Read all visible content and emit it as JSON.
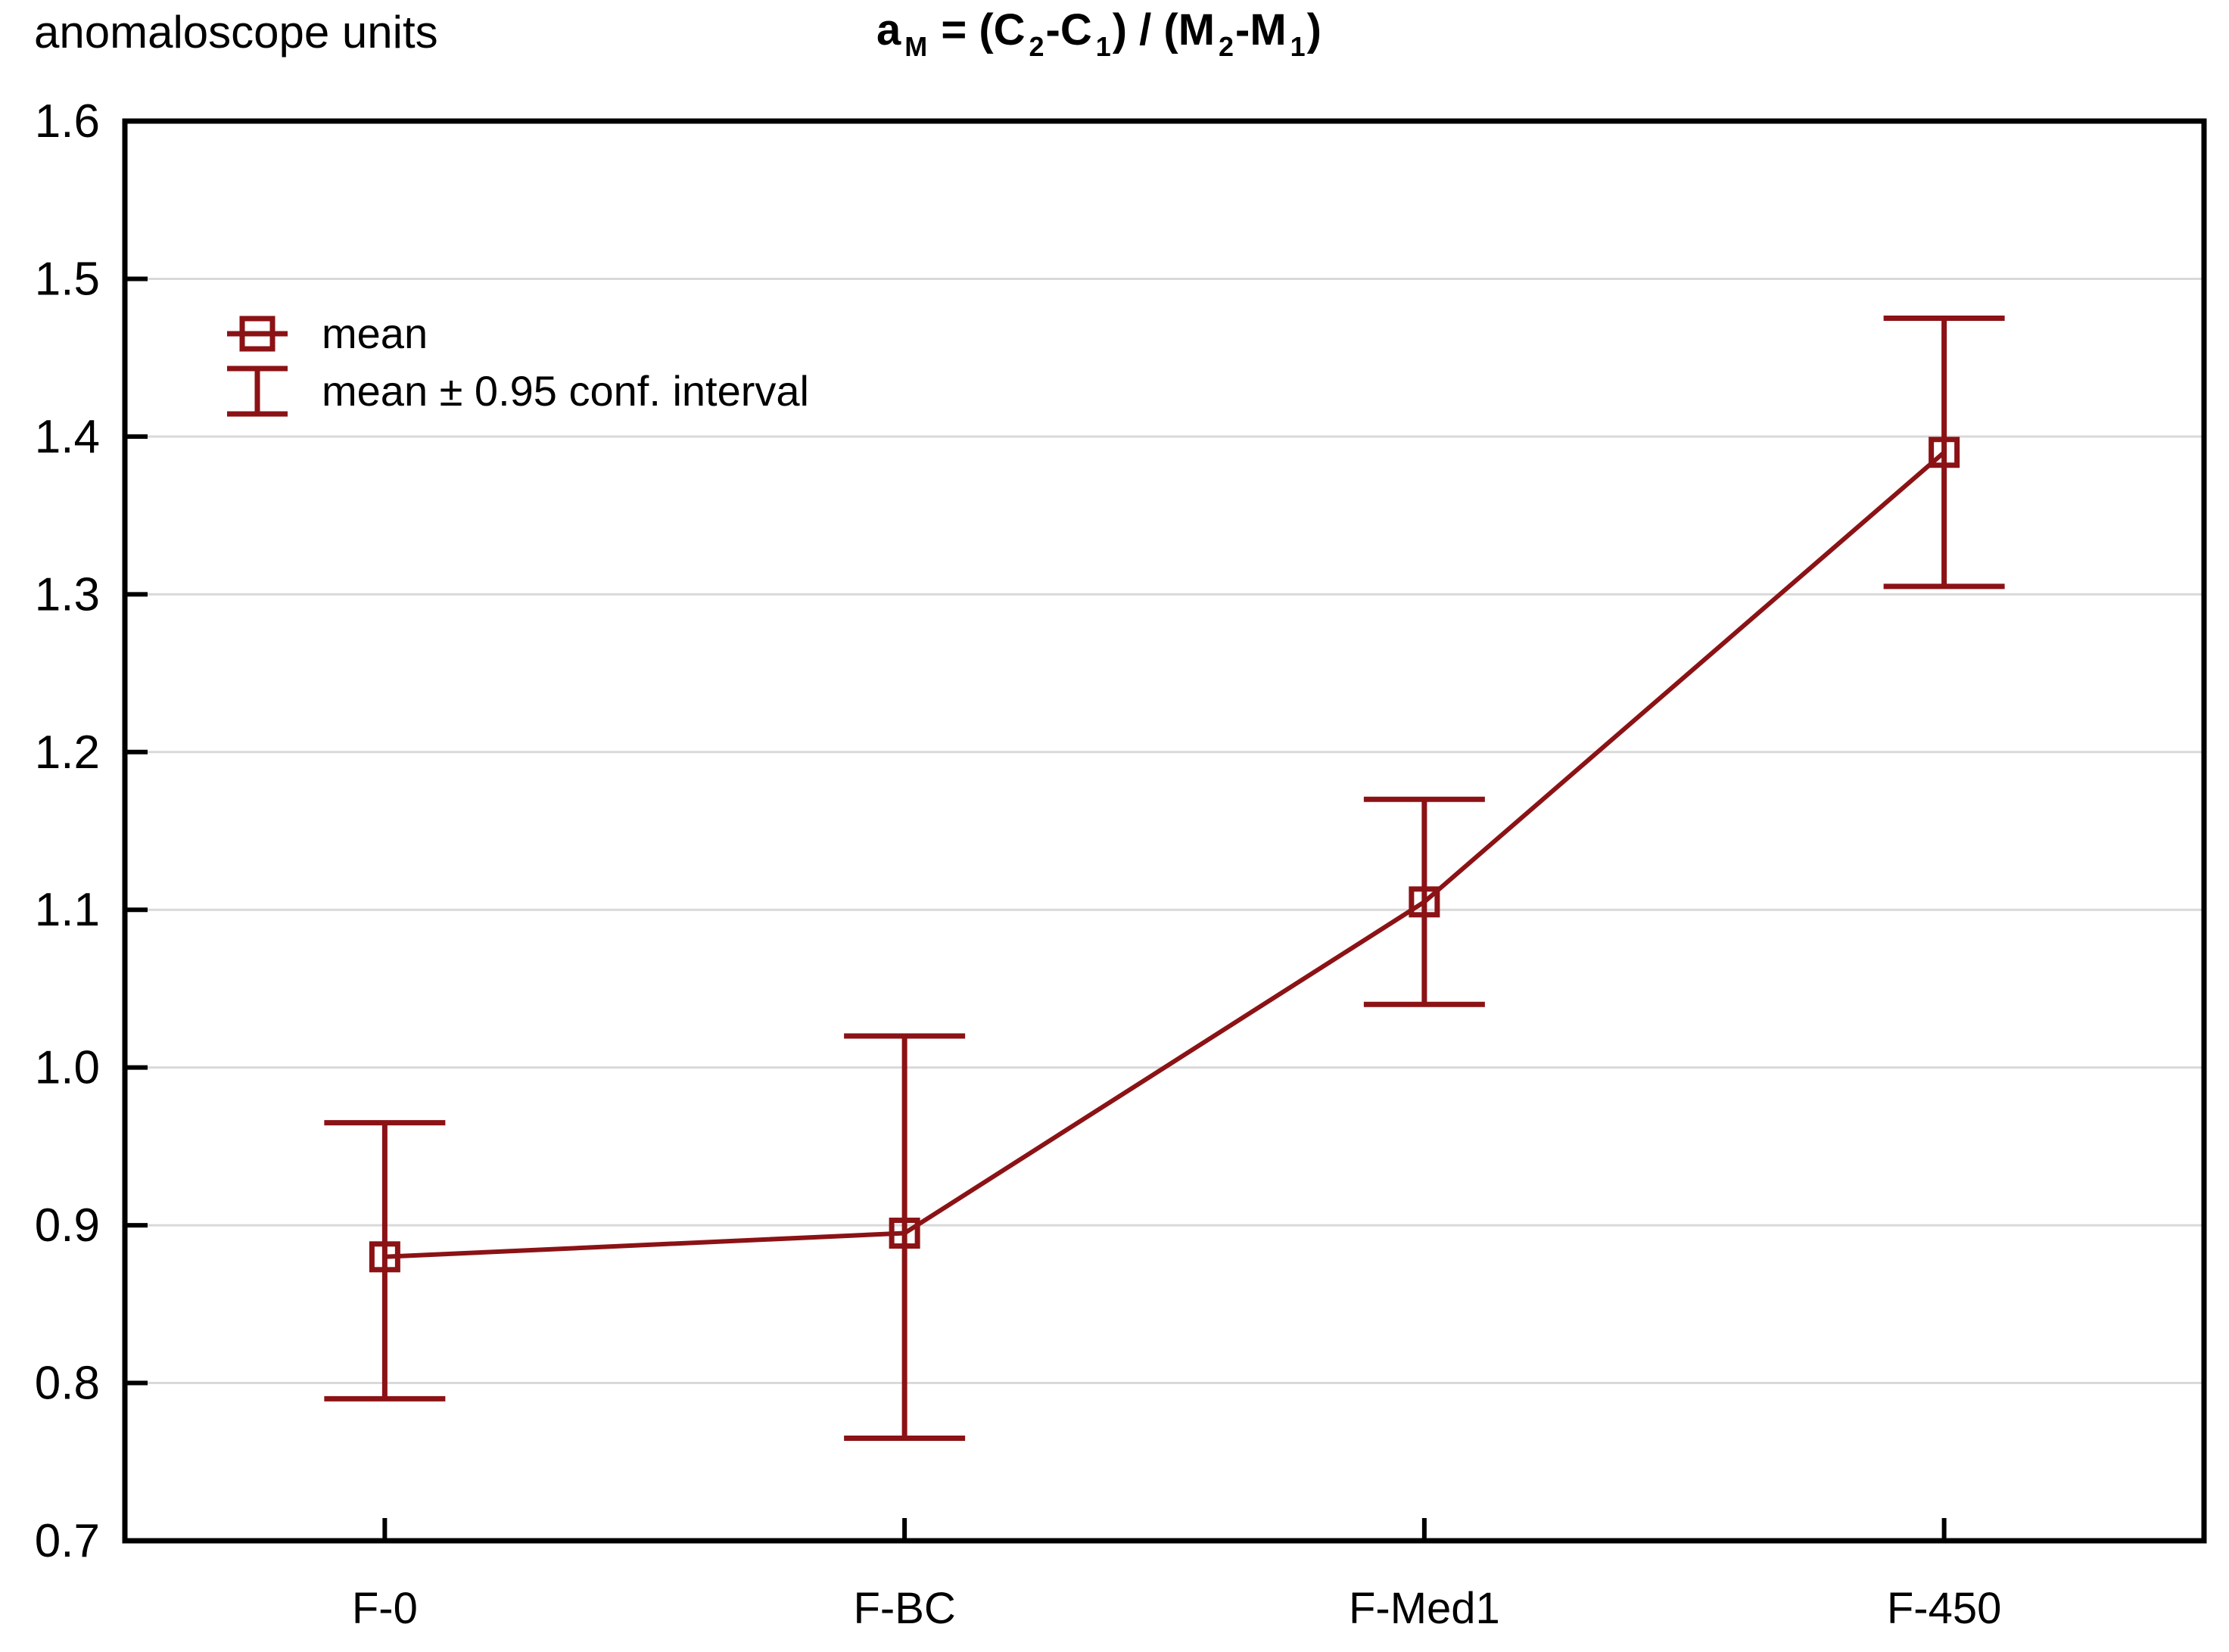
{
  "y_axis_title": "anomaloscope units",
  "title": {
    "plain": "a_M = (C2-C1) / (M2-M1)",
    "segments": [
      {
        "t": "a"
      },
      {
        "t": "M",
        "sub": true
      },
      {
        "t": " = (C"
      },
      {
        "t": "2",
        "sub": true
      },
      {
        "t": "-C"
      },
      {
        "t": "1",
        "sub": true
      },
      {
        "t": ") / (M"
      },
      {
        "t": "2",
        "sub": true
      },
      {
        "t": "-M"
      },
      {
        "t": "1",
        "sub": true
      },
      {
        "t": ")"
      }
    ]
  },
  "legend": {
    "items": [
      {
        "symbol": "mean-square-marker",
        "label": "mean"
      },
      {
        "symbol": "confidence-whisker",
        "label": "mean ± 0.95 conf. interval"
      }
    ]
  },
  "chart_data": {
    "type": "line",
    "categories": [
      "F-0",
      "F-BC",
      "F-Med1",
      "F-450"
    ],
    "series": [
      {
        "name": "mean",
        "values": [
          0.88,
          0.895,
          1.105,
          1.39
        ],
        "ci_low": [
          0.79,
          0.765,
          1.04,
          1.305
        ],
        "ci_high": [
          0.965,
          1.02,
          1.17,
          1.475
        ]
      }
    ],
    "ylabel": "anomaloscope units",
    "xlabel": "",
    "ylim": [
      0.7,
      1.6
    ],
    "ytick_step": 0.1,
    "ytick_labels": [
      "0.7",
      "0.8",
      "0.9",
      "1.0",
      "1.1",
      "1.2",
      "1.3",
      "1.4",
      "1.5",
      "1.6"
    ],
    "grid": true,
    "legend_position": "top-left-inside",
    "error_bar_kind": "mean ± 0.95 conf. interval",
    "colors": {
      "series": "#8B1215",
      "grid": "#D9D9D9",
      "frame": "#000000",
      "text": "#000000",
      "background": "#FFFFFF"
    }
  }
}
